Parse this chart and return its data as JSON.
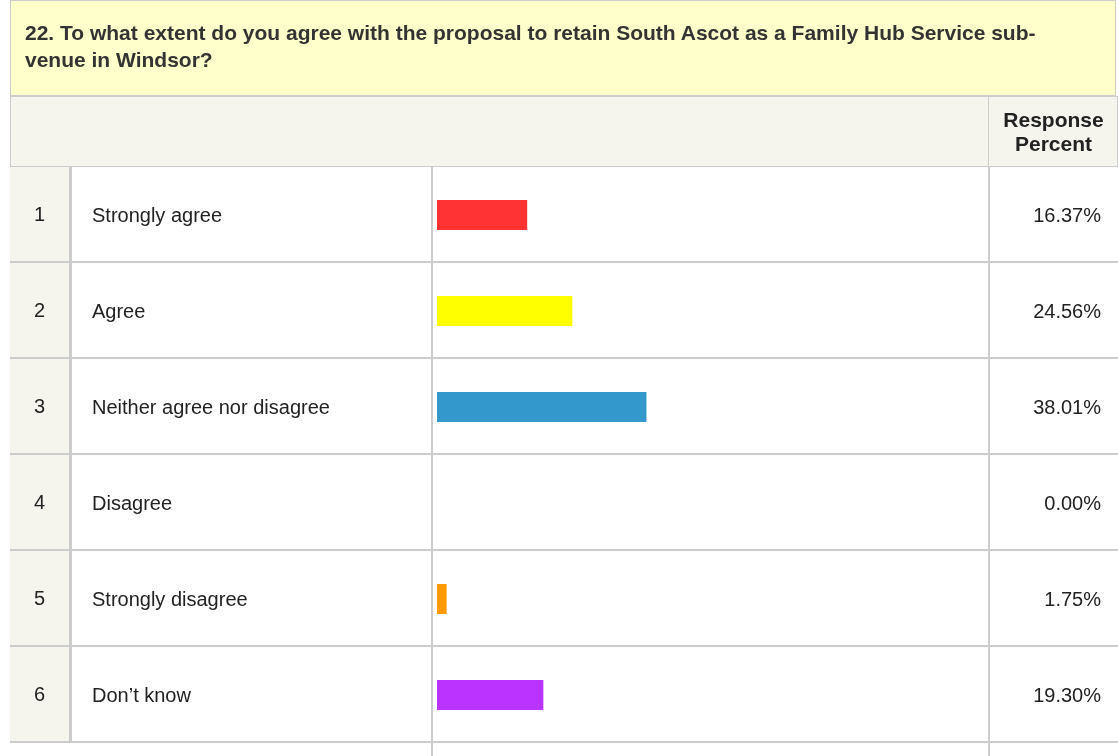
{
  "chart_data": {
    "type": "bar",
    "orientation": "horizontal",
    "title": "22. To what extent do you agree with the proposal to retain South Ascot as a Family Hub Service sub-venue in Windsor?",
    "categories": [
      "Strongly agree",
      "Agree",
      "Neither agree nor disagree",
      "Disagree",
      "Strongly disagree",
      "Don’t know"
    ],
    "values": [
      16.37,
      24.56,
      38.01,
      0.0,
      1.75,
      19.3
    ],
    "colors": [
      "#ff3333",
      "#ffff00",
      "#3399cc",
      null,
      "#ff9900",
      "#bb33ff"
    ],
    "value_labels": [
      "16.37%",
      "24.56%",
      "38.01%",
      "0.00%",
      "1.75%",
      "19.30%"
    ],
    "xlim": [
      0,
      100
    ],
    "annotations": [
      "Response Percent",
      "1",
      "2",
      "3",
      "4",
      "5",
      "6"
    ]
  }
}
